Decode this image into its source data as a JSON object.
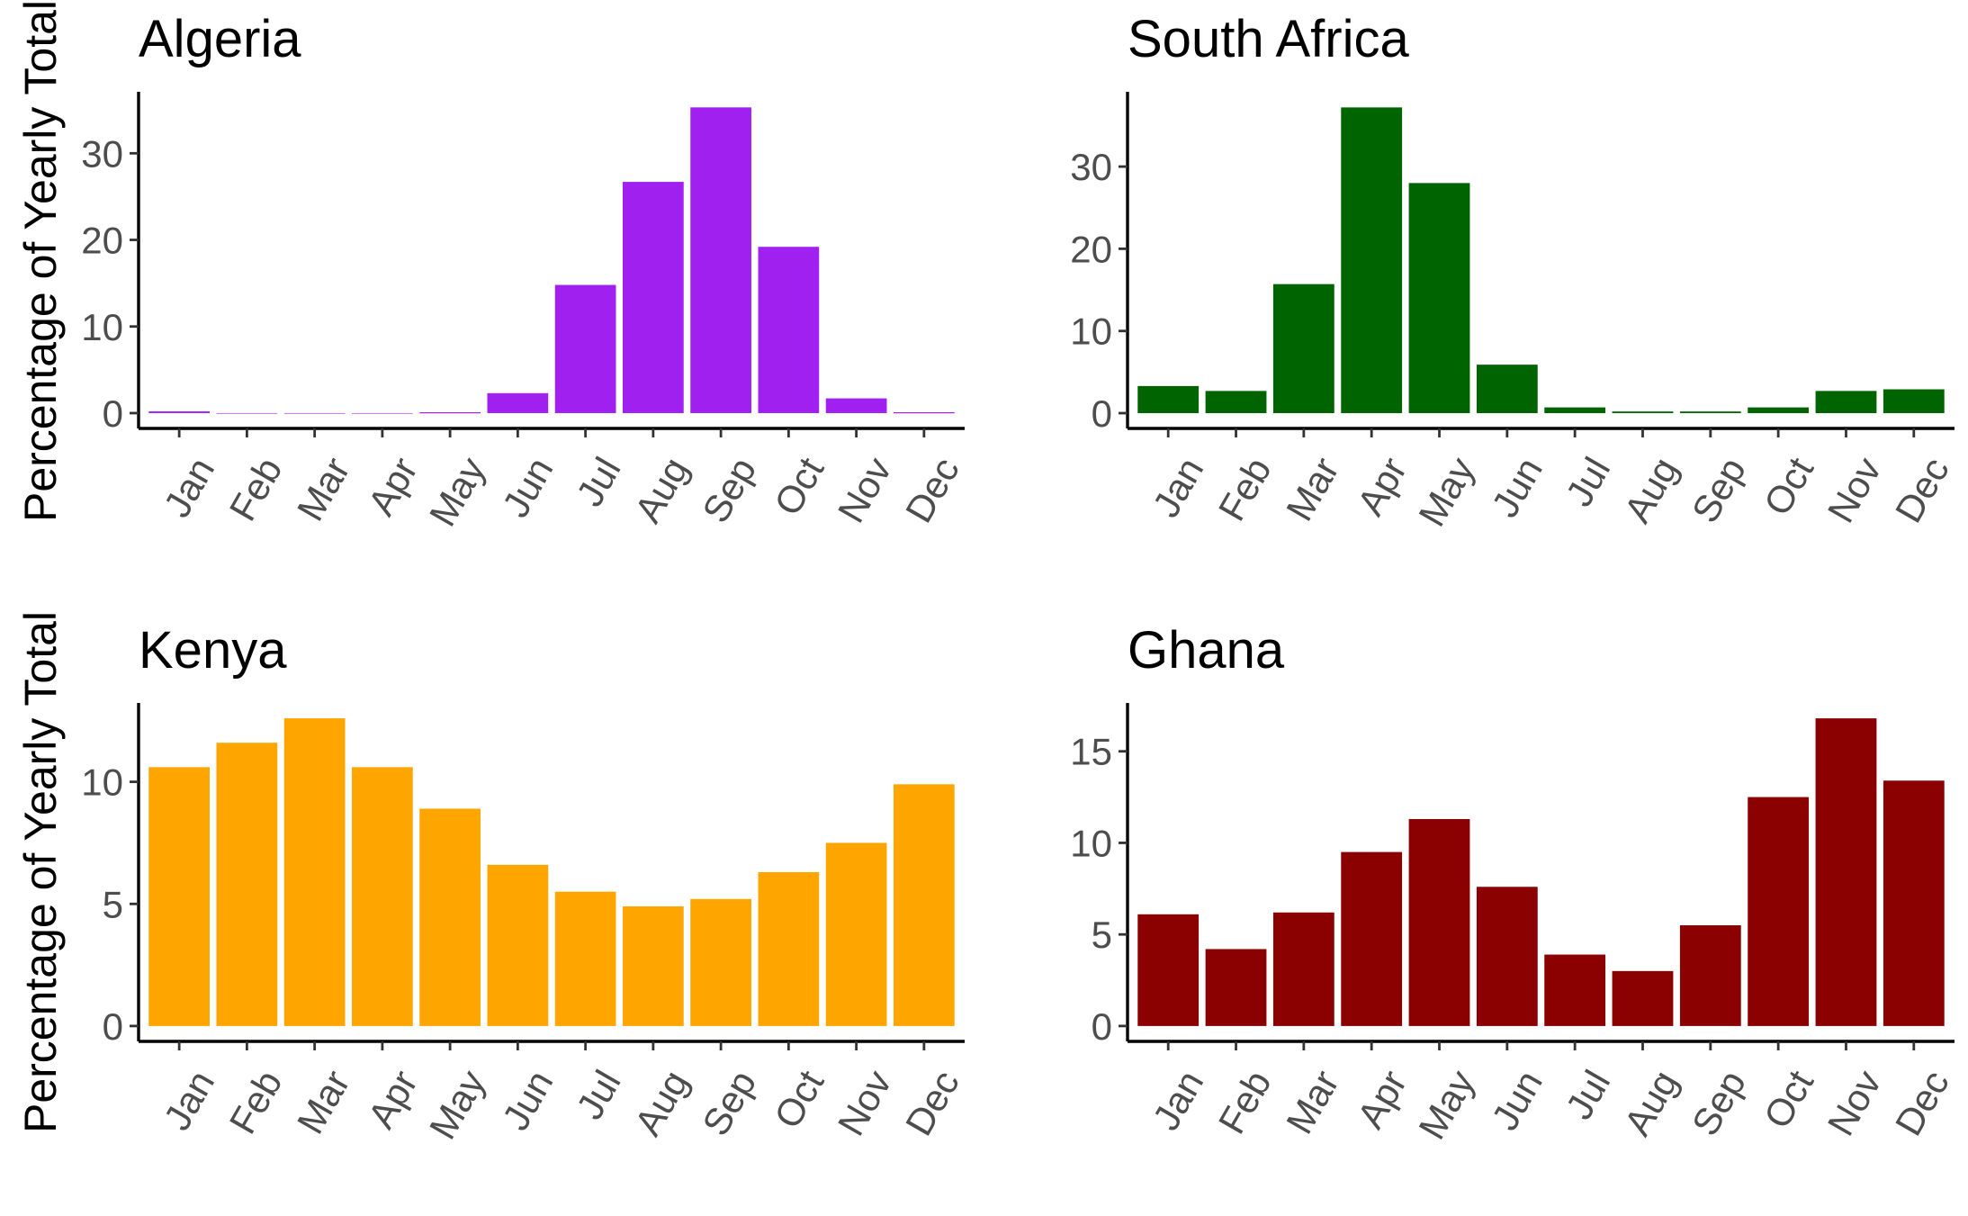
{
  "ylabel": "Percentage of Yearly Total",
  "chart_data": [
    {
      "type": "bar",
      "title": "Algeria",
      "color": "#A020F0",
      "categories": [
        "Jan",
        "Feb",
        "Mar",
        "Apr",
        "May",
        "Jun",
        "Jul",
        "Aug",
        "Sep",
        "Oct",
        "Nov",
        "Dec"
      ],
      "values": [
        0.2,
        0,
        0,
        0,
        0.1,
        2.3,
        14.8,
        26.7,
        35.3,
        19.2,
        1.7,
        0.1
      ],
      "xlabel": "",
      "ylabel": "Percentage of Yearly Total",
      "yticks": [
        0,
        10,
        20,
        30
      ],
      "ylim": [
        -1.77,
        37.1
      ]
    },
    {
      "type": "bar",
      "title": "South Africa",
      "color": "#006400",
      "categories": [
        "Jan",
        "Feb",
        "Mar",
        "Apr",
        "May",
        "Jun",
        "Jul",
        "Aug",
        "Sep",
        "Oct",
        "Nov",
        "Dec"
      ],
      "values": [
        3.3,
        2.7,
        15.7,
        37.2,
        28.0,
        5.9,
        0.7,
        0.2,
        0.2,
        0.7,
        2.7,
        2.9
      ],
      "xlabel": "",
      "ylabel": "",
      "yticks": [
        0,
        10,
        20,
        30
      ],
      "ylim": [
        -1.86,
        39.1
      ]
    },
    {
      "type": "bar",
      "title": "Kenya",
      "color": "#FFA500",
      "categories": [
        "Jan",
        "Feb",
        "Mar",
        "Apr",
        "May",
        "Jun",
        "Jul",
        "Aug",
        "Sep",
        "Oct",
        "Nov",
        "Dec"
      ],
      "values": [
        10.6,
        11.6,
        12.6,
        10.6,
        8.9,
        6.6,
        5.5,
        4.9,
        5.2,
        6.3,
        7.5,
        9.9
      ],
      "xlabel": "",
      "ylabel": "Percentage of Yearly Total",
      "yticks": [
        0,
        5,
        10
      ],
      "ylim": [
        -0.63,
        13.23
      ]
    },
    {
      "type": "bar",
      "title": "Ghana",
      "color": "#8B0000",
      "categories": [
        "Jan",
        "Feb",
        "Mar",
        "Apr",
        "May",
        "Jun",
        "Jul",
        "Aug",
        "Sep",
        "Oct",
        "Nov",
        "Dec"
      ],
      "values": [
        6.1,
        4.2,
        6.2,
        9.5,
        11.3,
        7.6,
        3.9,
        3.0,
        5.5,
        12.5,
        16.8,
        13.4
      ],
      "xlabel": "",
      "ylabel": "",
      "yticks": [
        0,
        5,
        10,
        15
      ],
      "ylim": [
        -0.84,
        17.64
      ]
    }
  ]
}
